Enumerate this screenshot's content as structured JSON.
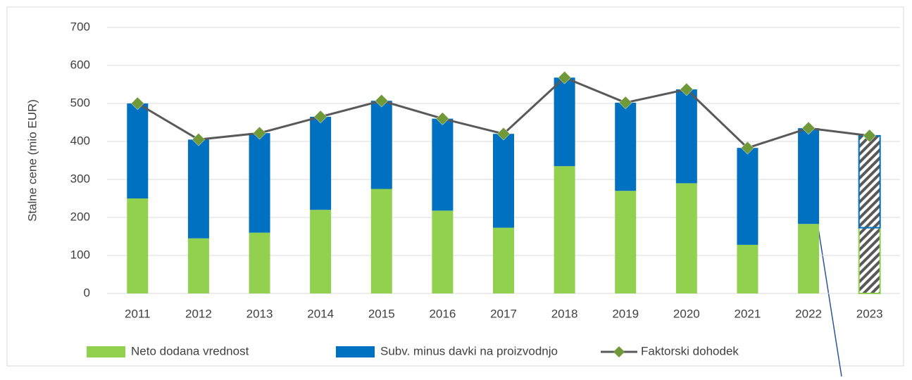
{
  "chart_data": {
    "type": "bar_line",
    "y_label": "Stalne cene (mio EUR)",
    "categories": [
      "2011",
      "2012",
      "2013",
      "2014",
      "2015",
      "2016",
      "2017",
      "2018",
      "2019",
      "2020",
      "2021",
      "2022",
      "2023"
    ],
    "series": [
      {
        "name": "Neto dodana vrednost",
        "color": "#92d050",
        "kind": "bar",
        "values": [
          250,
          145,
          160,
          220,
          275,
          218,
          173,
          335,
          270,
          290,
          128,
          183,
          173
        ]
      },
      {
        "name": "Subv. minus davki na proizvodnjo",
        "color": "#0070c0",
        "kind": "bar",
        "values": [
          250,
          260,
          262,
          245,
          232,
          242,
          247,
          233,
          232,
          247,
          255,
          252,
          242
        ]
      },
      {
        "name": "Faktorski dohodek",
        "color": "#595959",
        "marker_color": "#70993a",
        "kind": "line",
        "values": [
          500,
          405,
          422,
          465,
          507,
          460,
          420,
          568,
          502,
          537,
          383,
          435,
          415
        ]
      }
    ],
    "hatched": [
      false,
      false,
      false,
      false,
      false,
      false,
      false,
      false,
      false,
      false,
      false,
      false,
      true
    ],
    "ylim": [
      0,
      700
    ],
    "yticks": [
      0,
      100,
      200,
      300,
      400,
      500,
      600,
      700
    ],
    "grid": true
  }
}
